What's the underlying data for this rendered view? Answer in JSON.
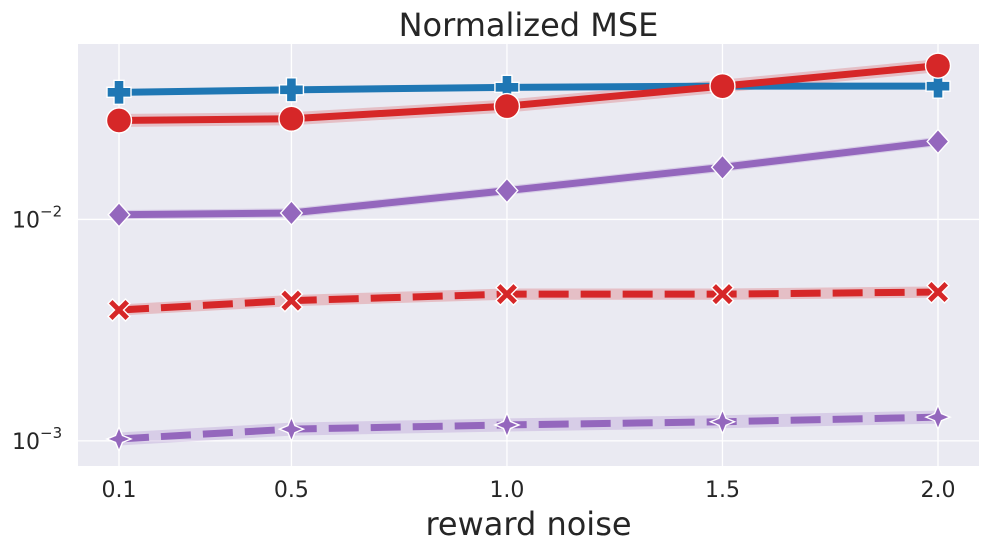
{
  "chart_data": {
    "type": "line",
    "title": "Normalized MSE",
    "xlabel": "reward noise",
    "ylabel": "",
    "yscale": "log",
    "ylim": [
      0.00077,
      0.062
    ],
    "grid": true,
    "x": [
      0.1,
      0.5,
      1.0,
      1.5,
      2.0
    ],
    "x_tick_labels": [
      "0.1",
      "0.5",
      "1.0",
      "1.5",
      "2.0"
    ],
    "y_ticks": [
      {
        "value": 0.01,
        "base": "10",
        "exp": "−2"
      },
      {
        "value": 0.001,
        "base": "10",
        "exp": "−3"
      }
    ],
    "series": [
      {
        "values": [
          0.0375,
          0.0385,
          0.0395,
          0.04,
          0.04
        ],
        "color": "#1f77b4",
        "linestyle": "solid",
        "marker": "plus-filled",
        "band": 0
      },
      {
        "values": [
          0.028,
          0.0285,
          0.0325,
          0.04,
          0.0495
        ],
        "color": "#d62728",
        "linestyle": "solid",
        "marker": "circle",
        "band": 0.07
      },
      {
        "values": [
          0.0105,
          0.0107,
          0.0135,
          0.0172,
          0.0225
        ],
        "color": "#9467bd",
        "linestyle": "solid",
        "marker": "diamond",
        "band": 0.05
      },
      {
        "values": [
          0.0039,
          0.0043,
          0.0046,
          0.0046,
          0.0047
        ],
        "color": "#d62728",
        "linestyle": "dashed",
        "marker": "x",
        "band": 0.06
      },
      {
        "values": [
          0.00102,
          0.00113,
          0.00118,
          0.00122,
          0.00128
        ],
        "color": "#9467bd",
        "linestyle": "dashed",
        "marker": "star4",
        "band": 0.07
      }
    ]
  }
}
